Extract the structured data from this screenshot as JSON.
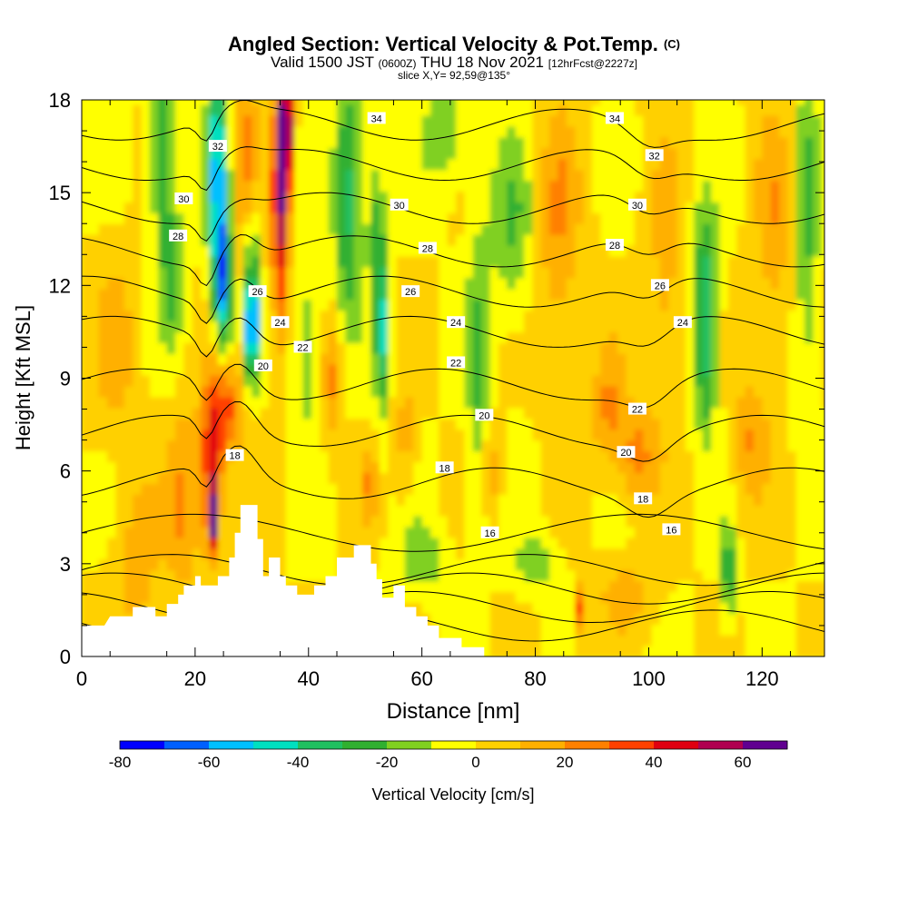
{
  "title": {
    "main": "Angled Section: Vertical Velocity & Pot.Temp.",
    "main_suffix": "(C)",
    "valid_prefix": "Valid 1500 JST",
    "valid_z": "(0600Z)",
    "valid_day": "THU 18 Nov 2021",
    "valid_fcst": "[12hrFcst@2227z]",
    "slice": "slice X,Y= 92,59@135°"
  },
  "chart_data": {
    "type": "heatmap",
    "title": "Angled Section: Vertical Velocity & Pot.Temp.",
    "xlabel": "Distance [nm]",
    "ylabel": "Height [Kft MSL]",
    "xlim": [
      0,
      131
    ],
    "ylim": [
      0,
      18
    ],
    "x_ticks": [
      0,
      20,
      40,
      60,
      80,
      100,
      120
    ],
    "y_ticks": [
      0,
      3,
      6,
      9,
      12,
      15,
      18
    ],
    "colorbar": {
      "label": "Vertical Velocity [cm/s]",
      "ticks": [
        -80,
        -60,
        -40,
        -20,
        0,
        20,
        40,
        60
      ],
      "min": -80,
      "max": 70,
      "step": 10,
      "colors": [
        "#0000ff",
        "#0060ff",
        "#00c0ff",
        "#00e0c0",
        "#20c060",
        "#30b030",
        "#80d020",
        "#ffff00",
        "#ffd000",
        "#ffb000",
        "#ff8000",
        "#ff4000",
        "#e00010",
        "#b00050",
        "#600090"
      ]
    },
    "isentropes": {
      "units": "C",
      "levels": [
        16,
        18,
        20,
        22,
        24,
        26,
        28,
        30,
        32,
        34
      ],
      "labels": [
        {
          "text": "32",
          "x": 24,
          "y": 16.5
        },
        {
          "text": "30",
          "x": 18,
          "y": 14.8
        },
        {
          "text": "28",
          "x": 17,
          "y": 13.6
        },
        {
          "text": "26",
          "x": 31,
          "y": 11.8
        },
        {
          "text": "24",
          "x": 35,
          "y": 10.8
        },
        {
          "text": "22",
          "x": 39,
          "y": 10.0
        },
        {
          "text": "20",
          "x": 32,
          "y": 9.4
        },
        {
          "text": "18",
          "x": 27,
          "y": 6.5
        },
        {
          "text": "34",
          "x": 52,
          "y": 17.4
        },
        {
          "text": "30",
          "x": 56,
          "y": 14.6
        },
        {
          "text": "28",
          "x": 61,
          "y": 13.2
        },
        {
          "text": "26",
          "x": 58,
          "y": 11.8
        },
        {
          "text": "24",
          "x": 66,
          "y": 10.8
        },
        {
          "text": "22",
          "x": 66,
          "y": 9.5
        },
        {
          "text": "20",
          "x": 71,
          "y": 7.8
        },
        {
          "text": "18",
          "x": 64,
          "y": 6.1
        },
        {
          "text": "16",
          "x": 72,
          "y": 4.0
        },
        {
          "text": "34",
          "x": 94,
          "y": 17.4
        },
        {
          "text": "32",
          "x": 101,
          "y": 16.2
        },
        {
          "text": "30",
          "x": 98,
          "y": 14.6
        },
        {
          "text": "28",
          "x": 94,
          "y": 13.3
        },
        {
          "text": "26",
          "x": 102,
          "y": 12.0
        },
        {
          "text": "24",
          "x": 106,
          "y": 10.8
        },
        {
          "text": "22",
          "x": 98,
          "y": 8.0
        },
        {
          "text": "20",
          "x": 96,
          "y": 6.6
        },
        {
          "text": "18",
          "x": 99,
          "y": 5.1
        },
        {
          "text": "16",
          "x": 104,
          "y": 4.1
        }
      ]
    },
    "terrain": [
      [
        0,
        1.0
      ],
      [
        4,
        1.0
      ],
      [
        5,
        1.3
      ],
      [
        9,
        1.3
      ],
      [
        9,
        1.6
      ],
      [
        13,
        1.6
      ],
      [
        13,
        1.3
      ],
      [
        15,
        1.3
      ],
      [
        15,
        1.7
      ],
      [
        17,
        1.7
      ],
      [
        17,
        2.0
      ],
      [
        18,
        2.0
      ],
      [
        18,
        2.3
      ],
      [
        20,
        2.3
      ],
      [
        20,
        2.6
      ],
      [
        21,
        2.6
      ],
      [
        21,
        2.3
      ],
      [
        24,
        2.3
      ],
      [
        24,
        2.6
      ],
      [
        26,
        2.6
      ],
      [
        26,
        3.2
      ],
      [
        27,
        3.2
      ],
      [
        27,
        4.0
      ],
      [
        28,
        4.0
      ],
      [
        28,
        4.9
      ],
      [
        31,
        4.9
      ],
      [
        31,
        3.8
      ],
      [
        32,
        3.8
      ],
      [
        32,
        2.6
      ],
      [
        33,
        2.6
      ],
      [
        33,
        3.2
      ],
      [
        35,
        3.2
      ],
      [
        35,
        2.6
      ],
      [
        36,
        2.6
      ],
      [
        36,
        2.3
      ],
      [
        38,
        2.3
      ],
      [
        38,
        2.0
      ],
      [
        41,
        2.0
      ],
      [
        41,
        2.3
      ],
      [
        43,
        2.3
      ],
      [
        43,
        2.6
      ],
      [
        45,
        2.6
      ],
      [
        45,
        3.2
      ],
      [
        48,
        3.2
      ],
      [
        48,
        3.6
      ],
      [
        51,
        3.6
      ],
      [
        51,
        3.0
      ],
      [
        52,
        3.0
      ],
      [
        52,
        2.5
      ],
      [
        53,
        2.5
      ],
      [
        53,
        1.9
      ],
      [
        55,
        1.9
      ],
      [
        55,
        2.3
      ],
      [
        57,
        2.3
      ],
      [
        57,
        1.6
      ],
      [
        59,
        1.6
      ],
      [
        59,
        1.3
      ],
      [
        61,
        1.3
      ],
      [
        61,
        1.0
      ],
      [
        63,
        1.0
      ],
      [
        63,
        0.6
      ],
      [
        67,
        0.6
      ],
      [
        67,
        0.3
      ],
      [
        71,
        0.3
      ],
      [
        71,
        0.0
      ]
    ]
  }
}
